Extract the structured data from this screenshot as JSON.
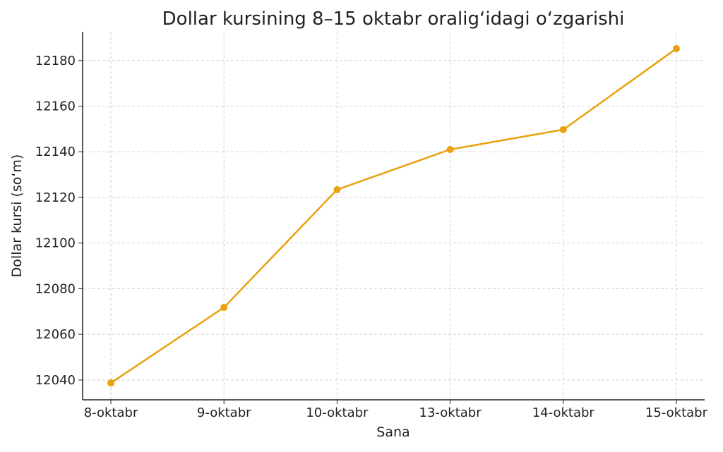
{
  "chart_data": {
    "type": "line",
    "title": "Dollar kursining 8–15 oktabr oralig‘idagi o‘zgarishi",
    "xlabel": "Sana",
    "ylabel": "Dollar kursi (so‘m)",
    "categories": [
      "8-oktabr",
      "9-oktabr",
      "10-oktabr",
      "13-oktabr",
      "14-oktabr",
      "15-oktabr"
    ],
    "series": [
      {
        "values": [
          12038.7,
          12071.8,
          12123.4,
          12141.0,
          12149.7,
          12185.2
        ],
        "color": "#E8A10E",
        "marker": "circle"
      }
    ],
    "yticks": [
      12040,
      12060,
      12080,
      12100,
      12120,
      12140,
      12160,
      12180
    ],
    "ylim": [
      12031.3,
      12192.6
    ],
    "grid": true,
    "grid_style": "dashed"
  }
}
